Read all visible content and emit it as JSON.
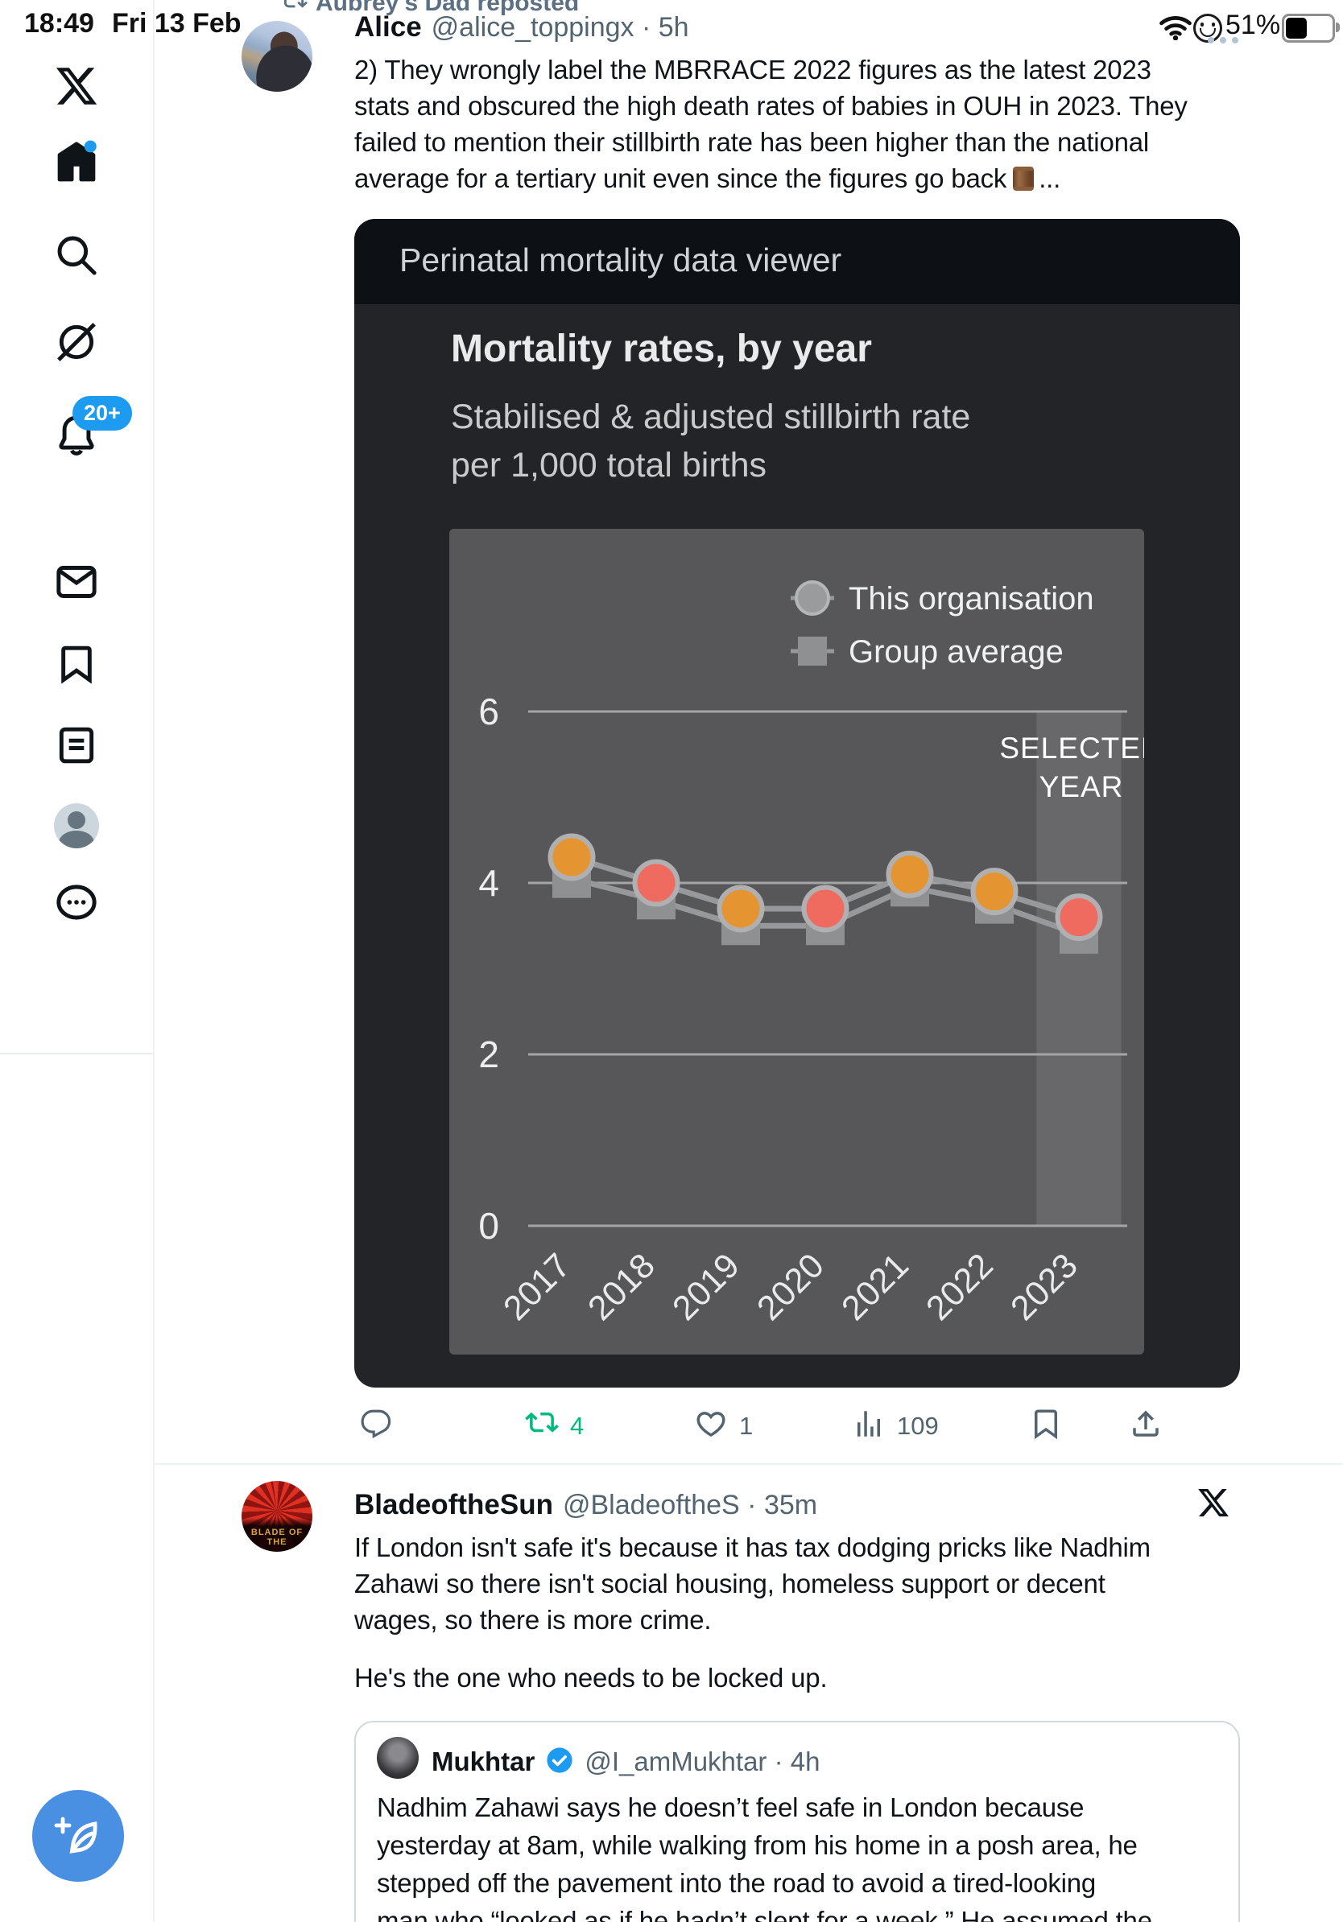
{
  "status_bar": {
    "time": "18:49",
    "date": "Fri 13 Feb",
    "battery": "51%"
  },
  "sidebar": {
    "notification_badge": "20+",
    "items": [
      {
        "label": "x-home-logo"
      },
      {
        "label": "home"
      },
      {
        "label": "search"
      },
      {
        "label": "grok"
      },
      {
        "label": "notifications"
      },
      {
        "label": "messages"
      },
      {
        "label": "bookmarks"
      },
      {
        "label": "lists"
      },
      {
        "label": "profile"
      },
      {
        "label": "more"
      }
    ]
  },
  "timeline": {
    "repost_banner": "Aubrey's Dad reposted",
    "tweet1": {
      "name": "Alice",
      "meta": "@alice_toppingx · 5h",
      "lines": [
        "2) They wrongly label the MBRRACE 2022 figures as the latest 2023",
        "stats and obscured the high death rates of babies in OUH in 2023. They",
        "failed to mention their stillbirth rate has been higher than the national",
        "average for a tertiary unit even since the figures go back"
      ],
      "line4_tail": "...",
      "chart_card": {
        "header": "Perinatal mortality data viewer"
      },
      "actions": {
        "reposts": "4",
        "likes": "1",
        "views": "109"
      }
    },
    "tweet2": {
      "name": "BladeoftheSun",
      "meta": "@BladeoftheS · 35m",
      "avatar_caption": "BLADE OF THE",
      "lines": [
        "If London isn't safe it's because it has tax dodging pricks like Nadhim",
        "Zahawi so there isn't social housing, homeless support or decent",
        "wages, so there is more crime."
      ],
      "line4": "He's the one who needs to be locked up.",
      "quoted": {
        "name": "Mukhtar",
        "meta": "@I_amMukhtar · 4h",
        "lines": [
          "Nadhim Zahawi says he doesn’t feel safe in London because",
          "yesterday at 8am, while walking from his home in a posh area, he",
          "stepped off the pavement into the road to avoid a tired-looking",
          "man who “looked as if he hadn’t slept for a week.” He assumed the"
        ]
      }
    }
  },
  "chart_data": {
    "type": "line",
    "title": "Mortality rates, by year",
    "subtitle_line1": "Stabilised & adjusted stillbirth rate",
    "subtitle_line2": "per 1,000 total births",
    "categories": [
      "2017",
      "2018",
      "2019",
      "2020",
      "2021",
      "2022",
      "2023"
    ],
    "series": [
      {
        "name": "This organisation",
        "marker": "circle",
        "values": [
          4.3,
          4.0,
          3.7,
          3.7,
          4.1,
          3.9,
          3.6
        ],
        "point_colors": [
          "#e49430",
          "#ef6a5f",
          "#e49430",
          "#ef6a5f",
          "#e49430",
          "#e49430",
          "#ef6a5f"
        ]
      },
      {
        "name": "Group average",
        "marker": "square",
        "values": [
          4.05,
          3.8,
          3.5,
          3.5,
          3.95,
          3.75,
          3.4
        ],
        "color": "#8f9092"
      }
    ],
    "ylim": [
      0,
      6
    ],
    "yticks": [
      6,
      4,
      2,
      0
    ],
    "xlabel": "",
    "ylabel": "",
    "grid": "horizontal",
    "legend_position": "top-right",
    "selected_year": "2023",
    "selected_year_label": [
      "SELECTED",
      "YEAR"
    ]
  },
  "accent_colors": {
    "twitter_blue": "#1d9bf0",
    "repost_green": "#00ba7c",
    "org_orange": "#e49430",
    "org_red": "#ef6a5f",
    "fab_blue": "#4a90e2"
  }
}
